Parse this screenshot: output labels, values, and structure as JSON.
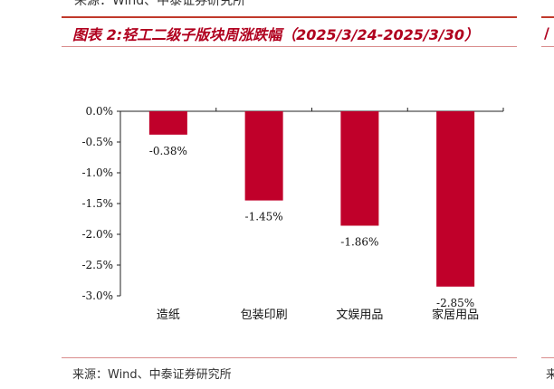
{
  "header": {
    "top_source": "来源：Wind、中泰证券研究所",
    "title": "图表 2:轻工二级子版块周涨跌幅（2025/3/24-2025/3/30）"
  },
  "footer": {
    "source": "来源：Wind、中泰证券研究所"
  },
  "chart_data": {
    "type": "bar",
    "title": "",
    "xlabel": "",
    "ylabel": "",
    "categories": [
      "造纸",
      "包装印刷",
      "文娱用品",
      "家居用品"
    ],
    "values": [
      -0.38,
      -1.45,
      -1.86,
      -2.85
    ],
    "data_labels": [
      "-0.38%",
      "-1.45%",
      "-1.86%",
      "-2.85%"
    ],
    "ylim": [
      -3.0,
      0.0
    ],
    "yticks": [
      0.0,
      -0.5,
      -1.0,
      -1.5,
      -2.0,
      -2.5,
      -3.0
    ],
    "ytick_labels": [
      "0.0%",
      "-0.5%",
      "-1.0%",
      "-1.5%",
      "-2.0%",
      "-2.5%",
      "-3.0%"
    ],
    "grid": false,
    "legend": "none",
    "bar_color": "#c0002a"
  }
}
